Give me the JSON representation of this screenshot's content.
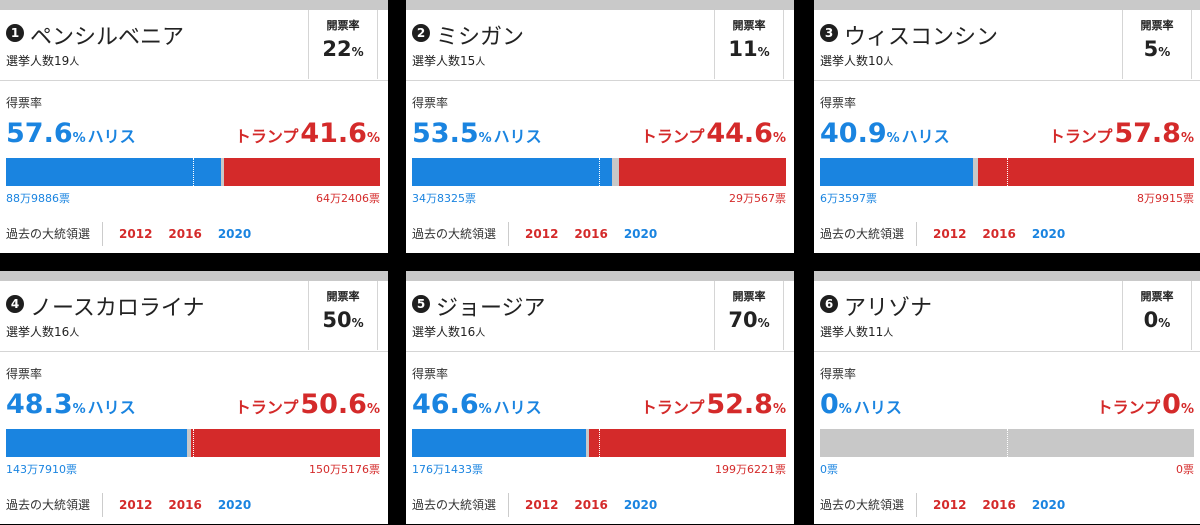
{
  "labels": {
    "count_label": "開票率",
    "vote_label": "得票率",
    "pct": "%",
    "harris": "ハリス",
    "trump": "トランプ",
    "past_label": "過去の大統領選",
    "years": [
      "2012",
      "2016",
      "2020"
    ]
  },
  "states": [
    {
      "rank": "1",
      "name": "ペンシルベニア",
      "electors_prefix": "選挙人数",
      "electors": "19",
      "electors_unit": "人",
      "count": "22",
      "harris_pct": "57.6",
      "trump_pct": "41.6",
      "harris_share": 0.576,
      "trump_share": 0.416,
      "harris_votes": "88万9886票",
      "trump_votes": "64万2406票"
    },
    {
      "rank": "2",
      "name": "ミシガン",
      "electors_prefix": "選挙人数",
      "electors": "15",
      "electors_unit": "人",
      "count": "11",
      "harris_pct": "53.5",
      "trump_pct": "44.6",
      "harris_share": 0.535,
      "trump_share": 0.446,
      "harris_votes": "34万8325票",
      "trump_votes": "29万567票"
    },
    {
      "rank": "3",
      "name": "ウィスコンシン",
      "electors_prefix": "選挙人数",
      "electors": "10",
      "electors_unit": "人",
      "count": "5",
      "harris_pct": "40.9",
      "trump_pct": "57.8",
      "harris_share": 0.409,
      "trump_share": 0.578,
      "harris_votes": "6万3597票",
      "trump_votes": "8万9915票"
    },
    {
      "rank": "4",
      "name": "ノースカロライナ",
      "electors_prefix": "選挙人数",
      "electors": "16",
      "electors_unit": "人",
      "count": "50",
      "harris_pct": "48.3",
      "trump_pct": "50.6",
      "harris_share": 0.483,
      "trump_share": 0.506,
      "harris_votes": "143万7910票",
      "trump_votes": "150万5176票"
    },
    {
      "rank": "5",
      "name": "ジョージア",
      "electors_prefix": "選挙人数",
      "electors": "16",
      "electors_unit": "人",
      "count": "70",
      "harris_pct": "46.6",
      "trump_pct": "52.8",
      "harris_share": 0.466,
      "trump_share": 0.528,
      "harris_votes": "176万1433票",
      "trump_votes": "199万6221票"
    },
    {
      "rank": "6",
      "name": "アリゾナ",
      "electors_prefix": "選挙人数",
      "electors": "11",
      "electors_unit": "人",
      "count": "0",
      "harris_pct": "0",
      "trump_pct": "0",
      "harris_share": 0,
      "trump_share": 0,
      "harris_votes": "0票",
      "trump_votes": "0票"
    }
  ],
  "colors": {
    "harris": "#1a84e0",
    "trump": "#d42a2a",
    "undecided": "#c8c8c8"
  }
}
